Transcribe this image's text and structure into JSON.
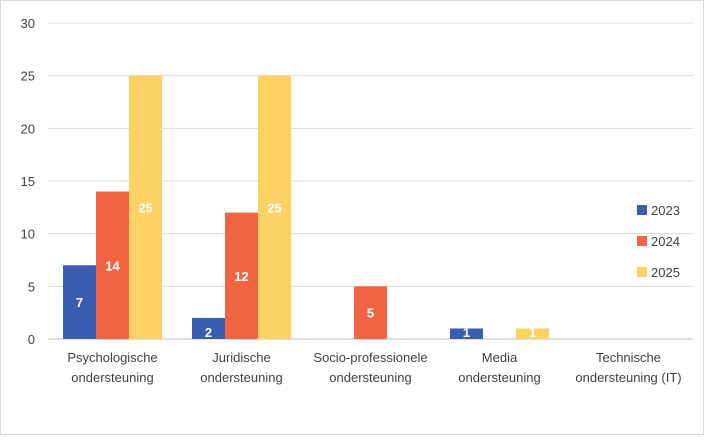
{
  "chart_data": {
    "type": "bar",
    "categories": [
      [
        "Psychologische",
        "ondersteuning"
      ],
      [
        "Juridische",
        "ondersteuning"
      ],
      [
        "Socio-professionele",
        "ondersteuning"
      ],
      [
        "Media",
        "ondersteuning"
      ],
      [
        "Technische",
        "ondersteuning (IT)"
      ]
    ],
    "series": [
      {
        "name": "2023",
        "color": "#3a5fb0",
        "values": [
          7,
          2,
          null,
          1,
          null
        ]
      },
      {
        "name": "2024",
        "color": "#f06442",
        "values": [
          14,
          12,
          5,
          null,
          null
        ]
      },
      {
        "name": "2025",
        "color": "#fcd264",
        "values": [
          25,
          25,
          null,
          1,
          null
        ]
      }
    ],
    "ylim": [
      0,
      30
    ],
    "yticks": [
      0,
      5,
      10,
      15,
      20,
      25,
      30
    ],
    "grid": true,
    "legend_position": "right",
    "data_labels": true
  }
}
